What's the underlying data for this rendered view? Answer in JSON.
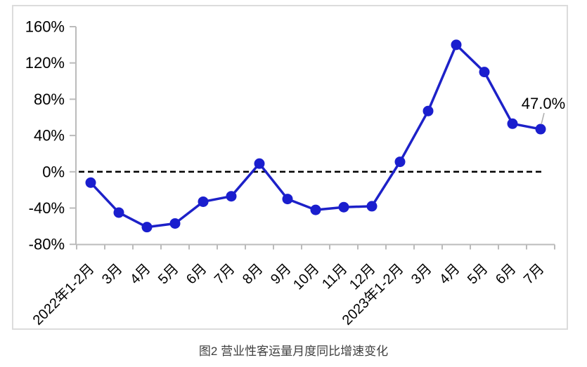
{
  "figure": {
    "caption": "图2 营业性客运量月度同比增速变化"
  },
  "chart_data": {
    "type": "line",
    "title": "",
    "categories": [
      "2022年1-2月",
      "3月",
      "4月",
      "5月",
      "6月",
      "7月",
      "8月",
      "9月",
      "10月",
      "11月",
      "12月",
      "2023年1-2月",
      "3月",
      "4月",
      "5月",
      "6月",
      "7月"
    ],
    "values": [
      -12,
      -45,
      -61,
      -57,
      -33,
      -27,
      9,
      -30,
      -42,
      -39,
      -38,
      11,
      67,
      140,
      110,
      53,
      47
    ],
    "ylim": [
      -80,
      160
    ],
    "ytick_step": 40,
    "ytick_labels": [
      "160%",
      "120%",
      "80%",
      "40%",
      "0%",
      "-40%",
      "-80%"
    ],
    "grid": false,
    "legend": "none",
    "zero_baseline": {
      "style": "dashed",
      "value": 0
    },
    "annotation": {
      "category_index": 16,
      "text": "47.0%"
    },
    "marker": "circle",
    "colors": {
      "series_line": "#1D21C8",
      "marker_fill": "#1A1ECE",
      "zero_line": "#000000",
      "axis_line": "#BBBBBB",
      "tick_text": "#000000",
      "annotation_text": "#000000",
      "leader_line": "#ABABAB",
      "caption_text": "#3F3F3F",
      "frame_border": "#DCDCDC",
      "background": "#FFFFFF"
    }
  }
}
